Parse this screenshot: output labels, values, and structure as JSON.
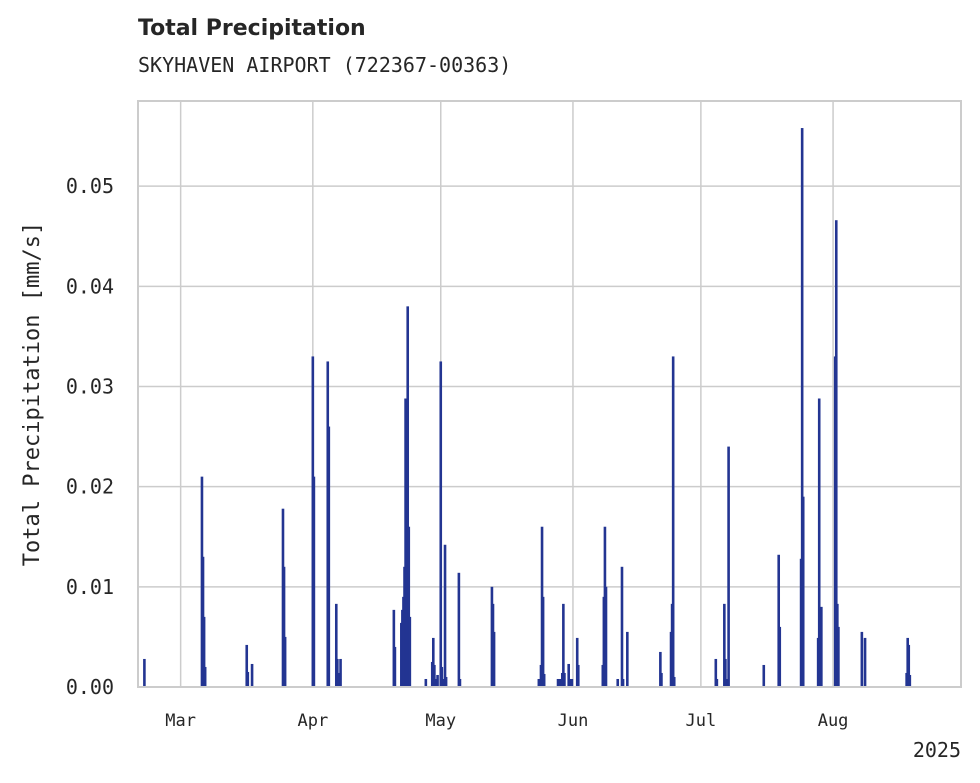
{
  "chart_data": {
    "type": "bar",
    "title": "Total Precipitation",
    "subtitle": "SKYHAVEN AIRPORT (722367-00363)",
    "xlabel": "",
    "ylabel": "Total Precipitation [mm/s]",
    "x_axis": "date",
    "xlim": [
      "2025-02-19",
      "2025-08-31"
    ],
    "ylim": [
      0,
      0.0585
    ],
    "x_ticks": [
      "2025-03-01",
      "2025-04-01",
      "2025-05-01",
      "2025-06-01",
      "2025-07-01",
      "2025-08-01"
    ],
    "x_tick_labels": [
      "Mar",
      "Apr",
      "May",
      "Jun",
      "Jul",
      "Aug"
    ],
    "x_year_label": "2025",
    "y_ticks": [
      0,
      0.01,
      0.02,
      0.03,
      0.04,
      0.05
    ],
    "y_tick_labels": [
      "0.00",
      "0.01",
      "0.02",
      "0.03",
      "0.04",
      "0.05"
    ],
    "grid": true,
    "series": [
      {
        "color": "#233592",
        "points": [
          [
            "2025-02-20T12:00",
            0.0028
          ],
          [
            "2025-03-06T00:00",
            0.021
          ],
          [
            "2025-03-06T06:00",
            0.013
          ],
          [
            "2025-03-06T12:00",
            0.007
          ],
          [
            "2025-03-06T18:00",
            0.002
          ],
          [
            "2025-03-16T12:00",
            0.0042
          ],
          [
            "2025-03-16T18:00",
            0.0015
          ],
          [
            "2025-03-17T18:00",
            0.0023
          ],
          [
            "2025-03-25T00:00",
            0.0178
          ],
          [
            "2025-03-25T06:00",
            0.012
          ],
          [
            "2025-03-25T12:00",
            0.005
          ],
          [
            "2025-04-01T00:00",
            0.033
          ],
          [
            "2025-04-01T06:00",
            0.021
          ],
          [
            "2025-04-04T12:00",
            0.0325
          ],
          [
            "2025-04-04T18:00",
            0.026
          ],
          [
            "2025-04-06T12:00",
            0.0083
          ],
          [
            "2025-04-06T18:00",
            0.0028
          ],
          [
            "2025-04-07T00:00",
            0.0014
          ],
          [
            "2025-04-07T12:00",
            0.0028
          ],
          [
            "2025-04-20T00:00",
            0.0077
          ],
          [
            "2025-04-20T06:00",
            0.004
          ],
          [
            "2025-04-21T18:00",
            0.0064
          ],
          [
            "2025-04-22T00:00",
            0.0077
          ],
          [
            "2025-04-22T06:00",
            0.009
          ],
          [
            "2025-04-22T12:00",
            0.012
          ],
          [
            "2025-04-22T18:00",
            0.0288
          ],
          [
            "2025-04-23T00:00",
            0.025
          ],
          [
            "2025-04-23T06:00",
            0.038
          ],
          [
            "2025-04-23T12:00",
            0.016
          ],
          [
            "2025-04-23T18:00",
            0.007
          ],
          [
            "2025-04-27T12:00",
            0.0008
          ],
          [
            "2025-04-29T00:00",
            0.0025
          ],
          [
            "2025-04-29T06:00",
            0.0049
          ],
          [
            "2025-04-29T12:00",
            0.0022
          ],
          [
            "2025-04-30T00:00",
            0.0008
          ],
          [
            "2025-04-30T06:00",
            0.0012
          ],
          [
            "2025-05-01T00:00",
            0.0325
          ],
          [
            "2025-05-01T06:00",
            0.002
          ],
          [
            "2025-05-01T18:00",
            0.0008
          ],
          [
            "2025-05-02T00:00",
            0.0142
          ],
          [
            "2025-05-02T06:00",
            0.001
          ],
          [
            "2025-05-05T06:00",
            0.0114
          ],
          [
            "2025-05-05T12:00",
            0.0008
          ],
          [
            "2025-05-13T00:00",
            0.01
          ],
          [
            "2025-05-13T06:00",
            0.0083
          ],
          [
            "2025-05-13T12:00",
            0.0055
          ],
          [
            "2025-05-24T00:00",
            0.0008
          ],
          [
            "2025-05-24T12:00",
            0.0022
          ],
          [
            "2025-05-24T18:00",
            0.016
          ],
          [
            "2025-05-25T00:00",
            0.009
          ],
          [
            "2025-05-25T06:00",
            0.0013
          ],
          [
            "2025-05-28T12:00",
            0.0008
          ],
          [
            "2025-05-29T00:00",
            0.0008
          ],
          [
            "2025-05-29T12:00",
            0.0014
          ],
          [
            "2025-05-29T18:00",
            0.0083
          ],
          [
            "2025-05-30T00:00",
            0.0014
          ],
          [
            "2025-05-31T00:00",
            0.0023
          ],
          [
            "2025-05-31T06:00",
            0.0008
          ],
          [
            "2025-05-31T18:00",
            0.0008
          ],
          [
            "2025-06-02T00:00",
            0.0049
          ],
          [
            "2025-06-02T06:00",
            0.0022
          ],
          [
            "2025-06-08T00:00",
            0.0022
          ],
          [
            "2025-06-08T06:00",
            0.009
          ],
          [
            "2025-06-08T12:00",
            0.016
          ],
          [
            "2025-06-08T18:00",
            0.01
          ],
          [
            "2025-06-11T12:00",
            0.0008
          ],
          [
            "2025-06-12T12:00",
            0.012
          ],
          [
            "2025-06-12T18:00",
            0.0008
          ],
          [
            "2025-06-13T18:00",
            0.0055
          ],
          [
            "2025-06-21T12:00",
            0.0035
          ],
          [
            "2025-06-21T18:00",
            0.0014
          ],
          [
            "2025-06-24T00:00",
            0.0055
          ],
          [
            "2025-06-24T06:00",
            0.0083
          ],
          [
            "2025-06-24T12:00",
            0.033
          ],
          [
            "2025-06-24T18:00",
            0.001
          ],
          [
            "2025-07-04T12:00",
            0.0028
          ],
          [
            "2025-07-04T18:00",
            0.0008
          ],
          [
            "2025-07-06T12:00",
            0.0083
          ],
          [
            "2025-07-06T18:00",
            0.0028
          ],
          [
            "2025-07-07T06:00",
            0.0008
          ],
          [
            "2025-07-07T12:00",
            0.024
          ],
          [
            "2025-07-15T18:00",
            0.0022
          ],
          [
            "2025-07-19T06:00",
            0.0132
          ],
          [
            "2025-07-19T12:00",
            0.006
          ],
          [
            "2025-07-24T12:00",
            0.0128
          ],
          [
            "2025-07-24T18:00",
            0.0558
          ],
          [
            "2025-07-25T00:00",
            0.019
          ],
          [
            "2025-07-28T12:00",
            0.0049
          ],
          [
            "2025-07-28T18:00",
            0.0288
          ],
          [
            "2025-07-29T00:00",
            0.0049
          ],
          [
            "2025-07-29T06:00",
            0.008
          ],
          [
            "2025-08-01T12:00",
            0.033
          ],
          [
            "2025-08-01T18:00",
            0.0466
          ],
          [
            "2025-08-02T00:00",
            0.0083
          ],
          [
            "2025-08-02T06:00",
            0.006
          ],
          [
            "2025-08-07T18:00",
            0.0055
          ],
          [
            "2025-08-08T12:00",
            0.0049
          ],
          [
            "2025-08-18T06:00",
            0.0014
          ],
          [
            "2025-08-18T12:00",
            0.0049
          ],
          [
            "2025-08-18T18:00",
            0.0042
          ],
          [
            "2025-08-19T00:00",
            0.0012
          ]
        ]
      }
    ]
  }
}
